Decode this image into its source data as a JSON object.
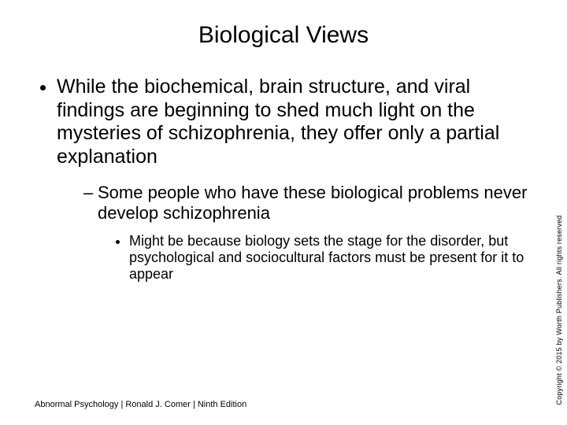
{
  "title": "Biological Views",
  "bullets": {
    "l1": "While the biochemical, brain structure, and viral findings are beginning to shed much light on the mysteries of schizophrenia, they offer only a partial explanation",
    "l2": "Some people who have these biological problems never develop schizophrenia",
    "l3": "Might be because biology sets the stage for the disorder, but psychological and sociocultural factors must be present for it to appear"
  },
  "footer": "Abnormal Psychology | Ronald J. Comer | Ninth Edition",
  "copyright": "Copyright © 2015 by Worth Publishers. All rights reserved",
  "style": {
    "background": "#ffffff",
    "text_color": "#000000",
    "font_family": "Arial",
    "title_fontsize": 30,
    "l1_fontsize": 25,
    "l2_fontsize": 22,
    "l3_fontsize": 18,
    "footer_fontsize": 11,
    "copyright_fontsize": 9,
    "slide_width": 720,
    "slide_height": 540
  }
}
